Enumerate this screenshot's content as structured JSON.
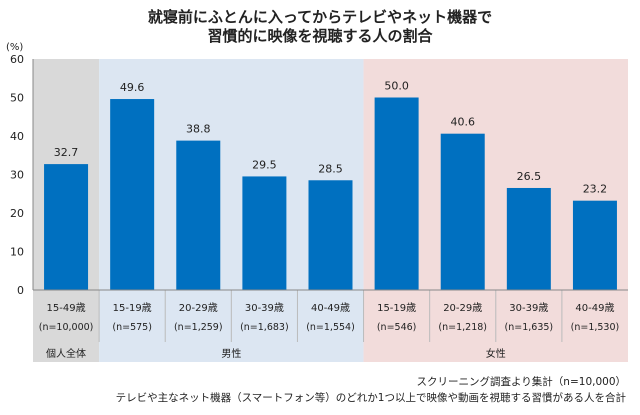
{
  "chart_data": {
    "type": "bar",
    "title": [
      "就寝前にふとんに入ってからテレビやネット機器で",
      "習慣的に映像を視聴する人の割合"
    ],
    "ylabel": "(%)",
    "ylim": [
      0,
      60
    ],
    "yticks": [
      0,
      10,
      20,
      30,
      40,
      50,
      60
    ],
    "grid": false,
    "categories": [
      {
        "age": "15-49歳",
        "n": "(n=10,000)"
      },
      {
        "age": "15-19歳",
        "n": "(n=575)"
      },
      {
        "age": "20-29歳",
        "n": "(n=1,259)"
      },
      {
        "age": "30-39歳",
        "n": "(n=1,683)"
      },
      {
        "age": "40-49歳",
        "n": "(n=1,554)"
      },
      {
        "age": "15-19歳",
        "n": "(n=546)"
      },
      {
        "age": "20-29歳",
        "n": "(n=1,218)"
      },
      {
        "age": "30-39歳",
        "n": "(n=1,635)"
      },
      {
        "age": "40-49歳",
        "n": "(n=1,530)"
      }
    ],
    "values": [
      32.7,
      49.6,
      38.8,
      29.5,
      28.5,
      50.0,
      40.6,
      26.5,
      23.2
    ],
    "value_labels": [
      "32.7",
      "49.6",
      "38.8",
      "29.5",
      "28.5",
      "50.0",
      "40.6",
      "26.5",
      "23.2"
    ],
    "groups": [
      {
        "label": "個人全体",
        "span": 1,
        "color": "#d9d9d9"
      },
      {
        "label": "男性",
        "span": 4,
        "color": "#dce6f2"
      },
      {
        "label": "女性",
        "span": 4,
        "color": "#f2dcdb"
      }
    ],
    "bar_color": "#0070c0"
  },
  "notes": [
    "スクリーニング調査より集計（n=10,000）",
    "テレビや主なネット機器（スマートフォン等）のどれか1つ以上で映像や動画を視聴する習慣がある人を合計"
  ]
}
